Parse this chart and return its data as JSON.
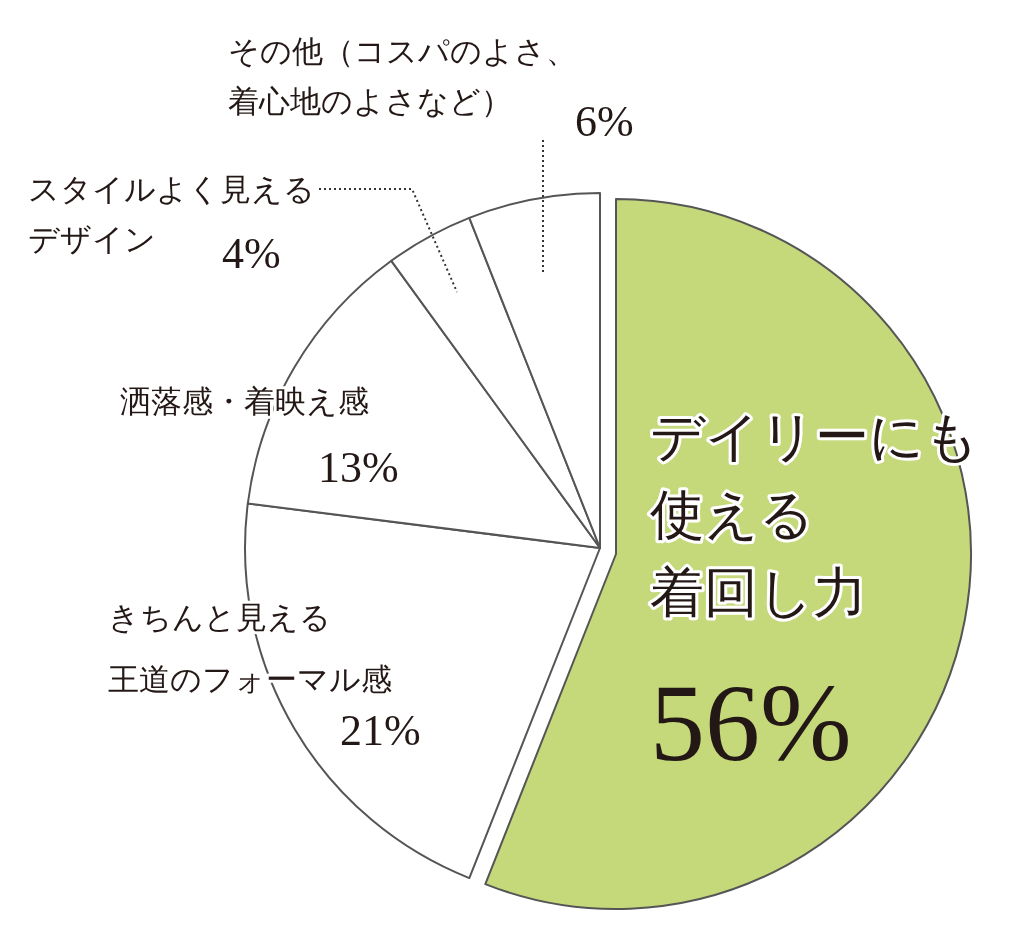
{
  "chart_data": {
    "type": "pie",
    "categories": [
      "デイリーにも使える着回し力",
      "きちんと見える王道のフォーマル感",
      "洒落感・着映え感",
      "スタイルよく見えるデザイン",
      "その他（コスパのよさ、着心地のよさなど）"
    ],
    "values": [
      56,
      21,
      13,
      4,
      6
    ],
    "colors": [
      "#c5d87a",
      "#ffffff",
      "#ffffff",
      "#ffffff",
      "#ffffff"
    ],
    "value_labels": [
      "56%",
      "21%",
      "13%",
      "4%",
      "6%"
    ]
  }
}
